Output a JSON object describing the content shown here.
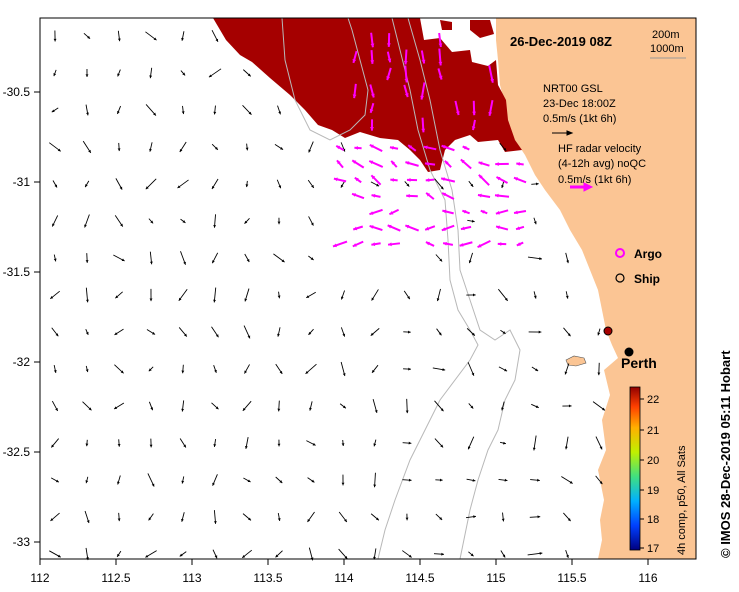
{
  "header": {
    "date_label": "26-Dec-2019 08Z"
  },
  "scale": {
    "contour_200": "200m",
    "contour_1000": "1000m"
  },
  "legend_gsl": {
    "title": "NRT00 GSL",
    "date": "23-Dec 18:00Z",
    "speed": "0.5m/s (1kt 6h)"
  },
  "legend_hf": {
    "line1": "HF radar velocity",
    "line2": "(4-12h avg) noQC",
    "speed": "0.5m/s (1kt 6h)"
  },
  "markers": {
    "argo": "Argo",
    "ship": "Ship"
  },
  "places": {
    "perth": "Perth"
  },
  "colorbar": {
    "ticks": [
      "22",
      "21",
      "20",
      "19",
      "18",
      "17"
    ],
    "caption": "4h comp, p50, All Sats"
  },
  "credit": "© IMOS 28-Dec-2019 05:11 Hobart",
  "axes": {
    "x_ticks": [
      "112",
      "112.5",
      "113",
      "113.5",
      "114",
      "114.5",
      "115",
      "115.5",
      "116"
    ],
    "y_ticks": [
      "-30.5",
      "-31",
      "-31.5",
      "-32",
      "-32.5",
      "-33"
    ]
  },
  "colors": {
    "land": "#fbc594",
    "sst_warm": "#a50000",
    "hf_arrow": "#ff00ff",
    "contour": "#b8b8b8"
  }
}
